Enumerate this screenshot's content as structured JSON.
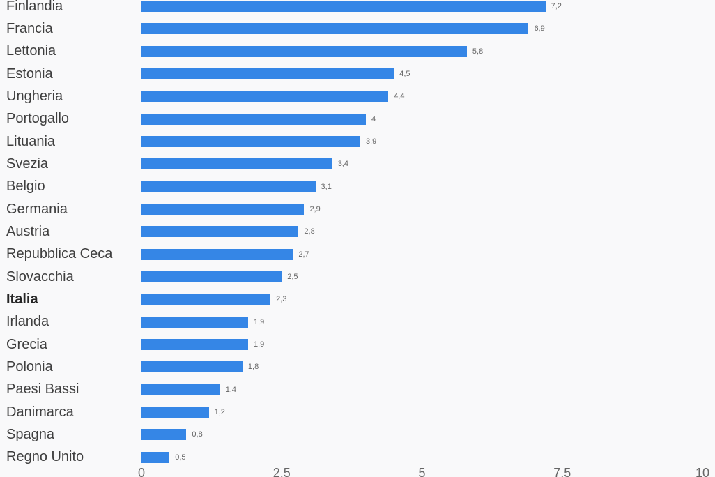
{
  "page": {
    "background_color": "#f9f9fa"
  },
  "chart_data": {
    "type": "bar",
    "orientation": "horizontal",
    "title": "",
    "xlabel": "",
    "ylabel": "",
    "xlim": [
      0,
      10
    ],
    "grid": false,
    "legend": false,
    "bar_color": "#3586e6",
    "category_label_color": "#3f3f3f",
    "value_label_color": "#666666",
    "axis_tick_color": "#666666",
    "highlight_category": "Italia",
    "categories": [
      "Finlandia",
      "Francia",
      "Lettonia",
      "Estonia",
      "Ungheria",
      "Portogallo",
      "Lituania",
      "Svezia",
      "Belgio",
      "Germania",
      "Austria",
      "Repubblica Ceca",
      "Slovacchia",
      "Italia",
      "Irlanda",
      "Grecia",
      "Polonia",
      "Paesi Bassi",
      "Danimarca",
      "Spagna",
      "Regno Unito"
    ],
    "values": [
      7.2,
      6.9,
      5.8,
      4.5,
      4.4,
      4.0,
      3.9,
      3.4,
      3.1,
      2.9,
      2.8,
      2.7,
      2.5,
      2.3,
      1.9,
      1.9,
      1.8,
      1.4,
      1.2,
      0.8,
      0.5
    ],
    "value_labels": [
      "7,2",
      "6,9",
      "5,8",
      "4,5",
      "4,4",
      "4",
      "3,9",
      "3,4",
      "3,1",
      "2,9",
      "2,8",
      "2,7",
      "2,5",
      "2,3",
      "1,9",
      "1,9",
      "1,8",
      "1,4",
      "1,2",
      "0,8",
      "0,5"
    ],
    "x_ticks": [
      {
        "label": "0",
        "value": 0
      },
      {
        "label": "2,5",
        "value": 2.5
      },
      {
        "label": "5",
        "value": 5
      },
      {
        "label": "7,5",
        "value": 7.5
      },
      {
        "label": "10",
        "value": 10
      }
    ]
  }
}
